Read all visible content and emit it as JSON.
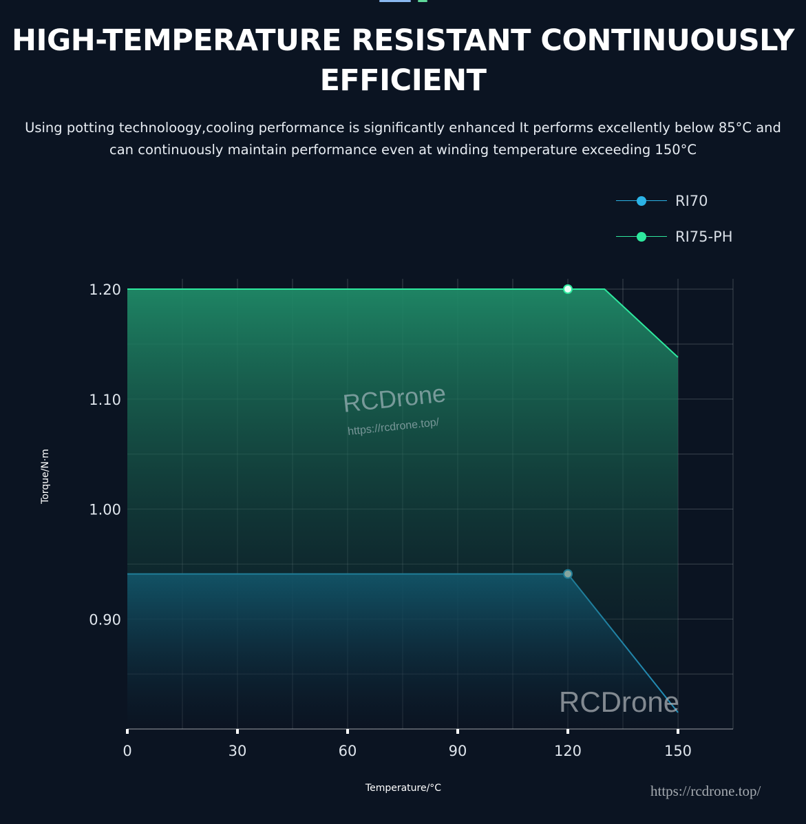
{
  "header": {
    "title": "HIGH-TEMPERATURE RESISTANT CONTINUOUSLY EFFICIENT",
    "subtitle": "Using potting technoloogy,cooling performance is significantly enhanced It performs excellently below 85°C and can continuously maintain performance even at winding temperature exceeding 150°C"
  },
  "tab_indicator_colors": [
    "#8ab8f0",
    "#5fd89a"
  ],
  "watermarks": {
    "brand": "RCDrone",
    "url": "https://rcdrone.top/",
    "brand2": "RCDrone",
    "url2": "https://rcdrone.top/"
  },
  "chart_data": {
    "type": "area",
    "xlabel": "Temperature/°C",
    "ylabel": "Torque/N·m",
    "xlim": [
      0,
      165
    ],
    "ylim": [
      0.8,
      1.2
    ],
    "xticks": [
      0,
      30,
      60,
      90,
      120,
      150
    ],
    "yticks": [
      "0.90",
      "1.00",
      "1.10",
      "1.20"
    ],
    "grid": true,
    "legend_position": "top-right",
    "series": [
      {
        "name": "RI70",
        "color": "#2bb3e6",
        "x": [
          0,
          120,
          150
        ],
        "y": [
          0.941,
          0.941,
          0.815
        ],
        "marker_at": 120
      },
      {
        "name": "RI75-PH",
        "color": "#2ee89e",
        "x": [
          0,
          130,
          150
        ],
        "y": [
          1.2,
          1.2,
          1.138
        ],
        "marker_at": 120
      }
    ]
  }
}
